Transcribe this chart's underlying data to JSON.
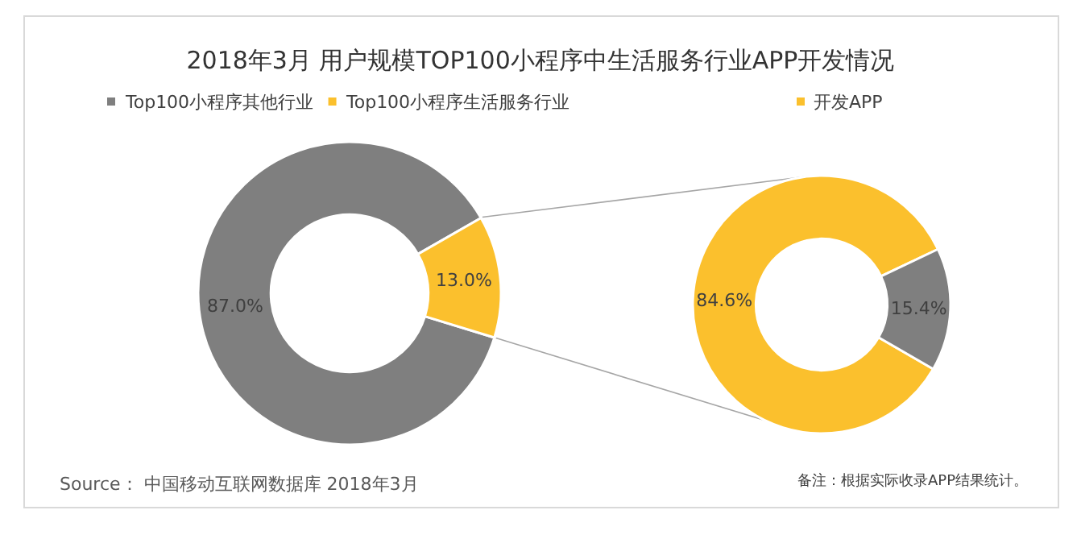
{
  "chart_data": [
    {
      "type": "donut",
      "title": "2018年3月 用户规模TOP100小程序中生活服务行业APP开发情况",
      "categories": [
        "Top100小程序其他行业",
        "Top100小程序生活服务行业"
      ],
      "values": [
        87.0,
        13.0
      ],
      "colors": [
        "#7f7f7f",
        "#fbc02d"
      ],
      "value_labels": [
        "87.0%",
        "13.0%"
      ],
      "legend": "top",
      "annotations": [
        "Source： 中国移动互联网数据库 2018年3月"
      ]
    },
    {
      "type": "donut",
      "categories": [
        "开发APP",
        null
      ],
      "values": [
        84.6,
        15.4
      ],
      "colors": [
        "#fbc02d",
        "#7f7f7f"
      ],
      "value_labels": [
        "84.6%",
        "15.4%"
      ],
      "legend": "top",
      "annotations": [
        "备注：根据实际收录APP结果统计。"
      ]
    }
  ]
}
